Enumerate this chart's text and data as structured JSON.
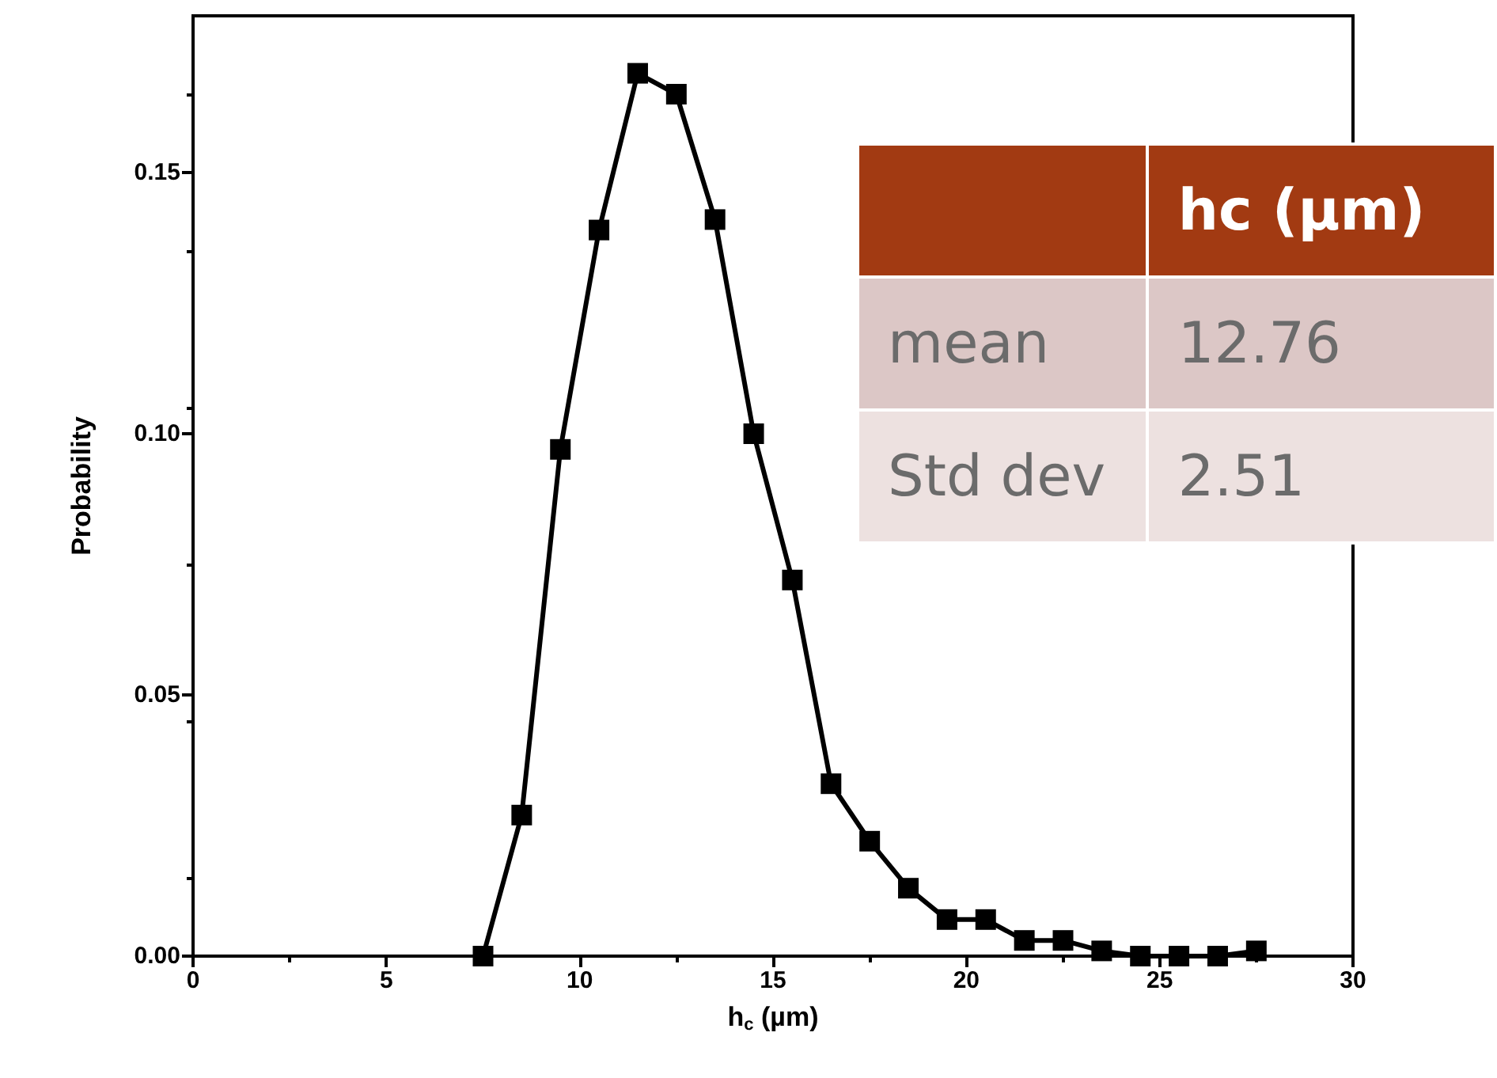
{
  "chart_data": {
    "type": "line",
    "xlabel": "h$_{c}$ (µm)",
    "ylabel": "Probability",
    "x": [
      7.5,
      8.5,
      9.5,
      10.5,
      11.5,
      12.5,
      13.5,
      14.5,
      15.5,
      16.5,
      17.5,
      18.5,
      19.5,
      20.5,
      21.5,
      22.5,
      23.5,
      24.5,
      25.5,
      26.5,
      27.5
    ],
    "series": [
      {
        "color": "#000000",
        "values": [
          0,
          0.027,
          0.097,
          0.139,
          0.169,
          0.165,
          0.141,
          0.1,
          0.072,
          0.033,
          0.022,
          0.013,
          0.007,
          0.007,
          0.003,
          0.003,
          0.001,
          0,
          0,
          0,
          0.001
        ]
      }
    ],
    "xlim": [
      0,
      30
    ],
    "xticks": [
      0,
      5,
      10,
      15,
      20,
      25,
      30
    ],
    "ylim": [
      0,
      0.18
    ],
    "yticks": [
      {
        "value": 0,
        "label": "0.00"
      },
      {
        "value": 0.05,
        "label": "0.05"
      },
      {
        "value": 0.1,
        "label": "0.10"
      },
      {
        "value": 0.15,
        "label": "0.15"
      }
    ],
    "marker": "square",
    "line_style": "solid",
    "grid": false,
    "annotations": [
      "hc (µm)",
      "mean",
      "12.76",
      "Std dev",
      "2.51"
    ]
  }
}
